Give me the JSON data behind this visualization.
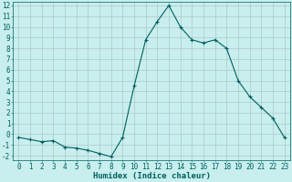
{
  "x": [
    0,
    1,
    2,
    3,
    4,
    5,
    6,
    7,
    8,
    9,
    10,
    11,
    12,
    13,
    14,
    15,
    16,
    17,
    18,
    19,
    20,
    21,
    22,
    23
  ],
  "y": [
    -0.3,
    -0.5,
    -0.7,
    -0.6,
    -1.2,
    -1.3,
    -1.5,
    -1.8,
    -2.1,
    -0.3,
    4.5,
    8.8,
    10.5,
    12.0,
    10.0,
    8.8,
    8.5,
    8.8,
    8.0,
    5.0,
    3.5,
    2.5,
    1.5,
    -0.3
  ],
  "line_color": "#005f5f",
  "bg_color": "#c8eeee",
  "grid_color": "#b0c8c8",
  "xlabel": "Humidex (Indice chaleur)",
  "ylim": [
    -2,
    12
  ],
  "xlim": [
    -0.5,
    23.5
  ],
  "yticks": [
    -2,
    -1,
    0,
    1,
    2,
    3,
    4,
    5,
    6,
    7,
    8,
    9,
    10,
    11,
    12
  ],
  "xticks": [
    0,
    1,
    2,
    3,
    4,
    5,
    6,
    7,
    8,
    9,
    10,
    11,
    12,
    13,
    14,
    15,
    16,
    17,
    18,
    19,
    20,
    21,
    22,
    23
  ],
  "label_fontsize": 6.5,
  "tick_fontsize": 5.5
}
